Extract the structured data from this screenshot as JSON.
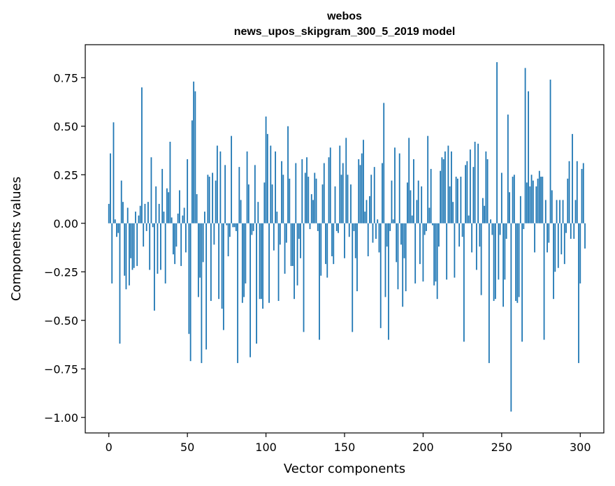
{
  "chart_data": {
    "type": "bar",
    "title": "webos",
    "subtitle": "news_upos_skipgram_300_5_2019 model",
    "xlabel": "Vector components",
    "ylabel": "Components values",
    "xlim": [
      -15,
      315
    ],
    "ylim": [
      -1.08,
      0.92
    ],
    "xticks": [
      0,
      50,
      100,
      150,
      200,
      250,
      300
    ],
    "xtick_labels": [
      "0",
      "50",
      "100",
      "150",
      "200",
      "250",
      "300"
    ],
    "yticks": [
      -1.0,
      -0.75,
      -0.5,
      -0.25,
      0.0,
      0.25,
      0.5,
      0.75
    ],
    "ytick_labels": [
      "−1.00",
      "−0.75",
      "−0.50",
      "−0.25",
      "0.00",
      "0.25",
      "0.50",
      "0.75"
    ],
    "bar_color": "#1f77b4",
    "values": [
      0.1,
      0.36,
      -0.31,
      0.52,
      0.02,
      -0.07,
      -0.05,
      -0.62,
      0.22,
      0.11,
      -0.27,
      -0.34,
      0.08,
      -0.32,
      -0.18,
      -0.24,
      -0.23,
      0.06,
      -0.22,
      0.04,
      0.09,
      0.7,
      -0.12,
      0.1,
      -0.04,
      0.11,
      -0.24,
      0.34,
      -0.02,
      -0.45,
      0.19,
      -0.26,
      0.1,
      -0.24,
      0.28,
      0.06,
      -0.31,
      0.18,
      0.16,
      0.42,
      0.03,
      -0.16,
      -0.21,
      -0.12,
      0.05,
      0.17,
      -0.22,
      0.04,
      0.08,
      -0.15,
      0.33,
      -0.57,
      -0.71,
      0.53,
      0.73,
      0.68,
      0.15,
      -0.38,
      -0.28,
      -0.72,
      -0.2,
      0.06,
      -0.65,
      0.25,
      0.24,
      -0.4,
      0.26,
      -0.11,
      0.22,
      0.4,
      -0.39,
      0.37,
      -0.44,
      -0.55,
      0.3,
      -0.01,
      -0.17,
      -0.07,
      0.45,
      -0.02,
      -0.02,
      -0.04,
      -0.72,
      0.29,
      0.12,
      -0.41,
      -0.38,
      -0.31,
      0.37,
      0.2,
      -0.69,
      -0.06,
      -0.04,
      0.3,
      -0.62,
      0.11,
      -0.39,
      -0.39,
      -0.44,
      0.21,
      0.55,
      0.46,
      -0.41,
      0.4,
      0.2,
      -0.14,
      0.37,
      0.06,
      -0.4,
      -0.11,
      0.32,
      0.25,
      -0.26,
      -0.1,
      0.5,
      0.23,
      -0.22,
      -0.22,
      -0.39,
      0.31,
      -0.32,
      -0.08,
      -0.18,
      0.33,
      -0.56,
      0.26,
      0.34,
      0.24,
      -0.03,
      0.15,
      0.12,
      0.26,
      0.23,
      -0.04,
      -0.6,
      -0.27,
      0.2,
      0.31,
      -0.21,
      -0.28,
      0.34,
      0.39,
      -0.17,
      -0.21,
      0.19,
      -0.04,
      -0.05,
      0.4,
      0.25,
      0.31,
      -0.18,
      0.44,
      0.25,
      -0.07,
      0.2,
      -0.56,
      -0.04,
      -0.18,
      -0.35,
      0.33,
      0.3,
      0.36,
      0.43,
      0.06,
      0.12,
      -0.17,
      0.14,
      0.25,
      -0.1,
      0.29,
      -0.08,
      0.02,
      -0.15,
      -0.54,
      0.31,
      0.62,
      -0.38,
      -0.12,
      -0.6,
      -0.04,
      0.22,
      0.02,
      0.39,
      -0.2,
      -0.34,
      0.36,
      -0.11,
      -0.43,
      -0.18,
      -0.35,
      0.21,
      0.44,
      0.17,
      0.04,
      0.33,
      -0.31,
      0.12,
      0.22,
      -0.21,
      0.19,
      -0.3,
      -0.06,
      -0.04,
      0.45,
      0.08,
      0.28,
      -0.01,
      -0.32,
      -0.3,
      -0.39,
      -0.12,
      0.27,
      0.34,
      0.33,
      0.37,
      -0.29,
      0.4,
      0.19,
      0.37,
      0.11,
      -0.28,
      0.24,
      0.23,
      -0.12,
      0.24,
      -0.07,
      -0.61,
      0.3,
      0.32,
      0.04,
      0.38,
      -0.15,
      0.29,
      0.42,
      -0.24,
      0.41,
      -0.12,
      -0.37,
      0.13,
      0.09,
      0.37,
      0.33,
      -0.72,
      0.02,
      -0.06,
      -0.4,
      -0.39,
      0.83,
      -0.29,
      -0.06,
      0.26,
      -0.43,
      -0.29,
      -0.08,
      0.56,
      0.16,
      -0.97,
      0.24,
      0.25,
      -0.4,
      -0.41,
      -0.38,
      0.14,
      -0.61,
      -0.03,
      0.8,
      0.21,
      0.68,
      0.19,
      0.25,
      0.22,
      -0.15,
      0.19,
      0.23,
      0.27,
      0.24,
      0.24,
      -0.6,
      0.12,
      -0.15,
      -0.1,
      0.74,
      0.17,
      -0.39,
      -0.25,
      0.12,
      -0.23,
      0.12,
      -0.16,
      0.12,
      -0.21,
      -0.05,
      0.23,
      0.32,
      -0.08,
      0.46,
      -0.08,
      0.12,
      0.32,
      -0.72,
      -0.31,
      0.28,
      0.31,
      -0.13
    ]
  }
}
